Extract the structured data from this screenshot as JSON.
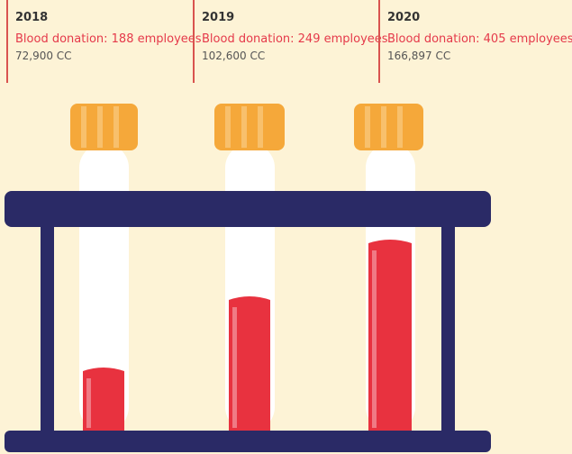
{
  "items": [
    {
      "year": "2018",
      "label": "Blood donation: 188 employees",
      "volume": "72,900 CC"
    },
    {
      "year": "2019",
      "label": "Blood donation: 249 employees",
      "volume": "102,600 CC"
    },
    {
      "year": "2020",
      "label": "Blood donation: 405 employees",
      "volume": "166,897 CC"
    }
  ]
}
